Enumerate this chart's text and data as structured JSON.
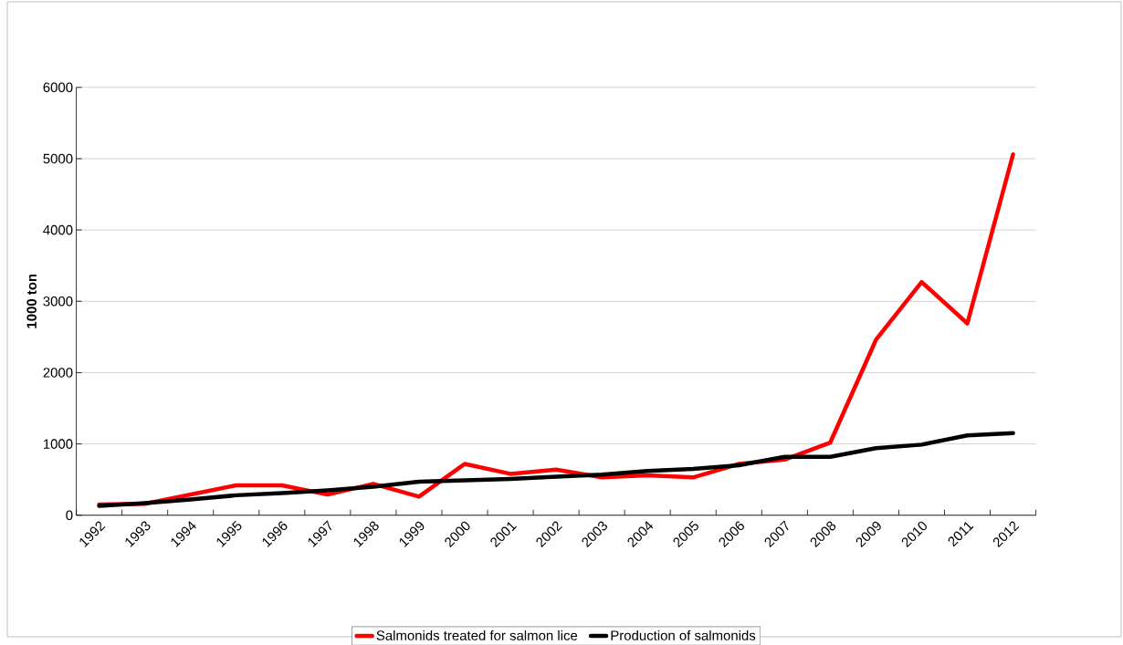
{
  "chart_data": {
    "type": "line",
    "ylabel": "1000 ton",
    "categories": [
      "1992",
      "1993",
      "1994",
      "1995",
      "1996",
      "1997",
      "1998",
      "1999",
      "2000",
      "2001",
      "2002",
      "2003",
      "2004",
      "2005",
      "2006",
      "2007",
      "2008",
      "2009",
      "2010",
      "2011",
      "2012"
    ],
    "series": [
      {
        "name": "Salmonids treated for salmon lice",
        "color": "#ff0000",
        "values": [
          150,
          160,
          290,
          420,
          420,
          290,
          440,
          260,
          720,
          580,
          640,
          530,
          560,
          530,
          720,
          780,
          1020,
          2460,
          3270,
          2690,
          5060
        ]
      },
      {
        "name": "Production of salmonids",
        "color": "#000000",
        "values": [
          130,
          170,
          220,
          280,
          310,
          350,
          400,
          470,
          490,
          510,
          540,
          570,
          620,
          650,
          700,
          820,
          820,
          940,
          990,
          1120,
          1150
        ]
      }
    ],
    "ylim": [
      0,
      6000
    ],
    "yticks": [
      0,
      1000,
      2000,
      3000,
      4000,
      5000,
      6000
    ],
    "grid": "y",
    "legend": "bottom",
    "marker": "none",
    "line_style": "solid"
  }
}
